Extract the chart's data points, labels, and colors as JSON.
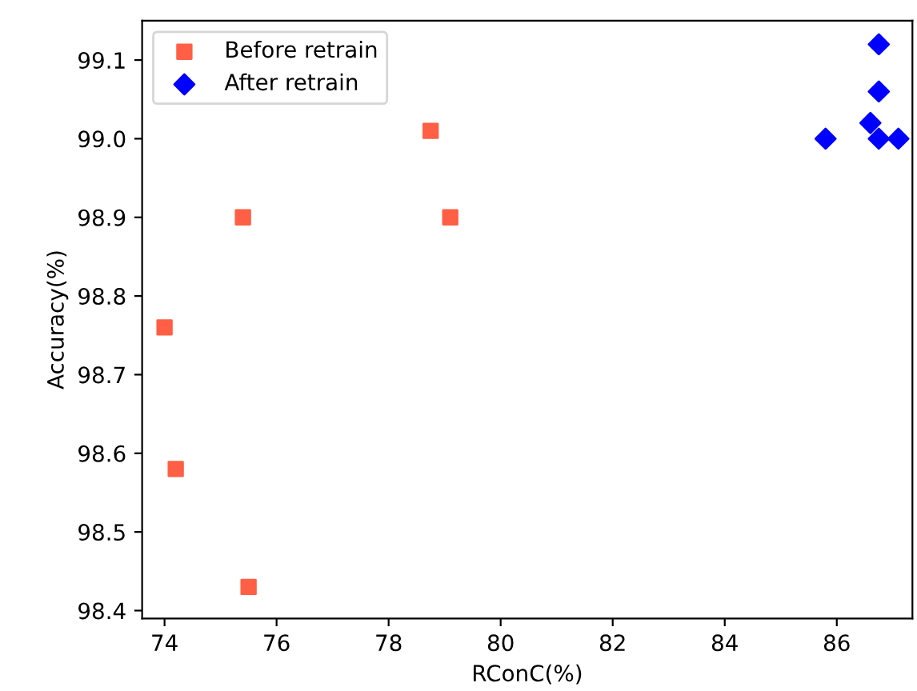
{
  "chart_data": {
    "type": "scatter",
    "xlabel": "RConC(%)",
    "ylabel": "Accuracy(%)",
    "xlim": [
      73.6,
      87.35
    ],
    "ylim": [
      98.39,
      99.15
    ],
    "xticks": [
      74,
      76,
      78,
      80,
      82,
      84,
      86
    ],
    "yticks": [
      {
        "value": 98.4,
        "label": "98.4"
      },
      {
        "value": 98.5,
        "label": "98.5"
      },
      {
        "value": 98.6,
        "label": "98.6"
      },
      {
        "value": 98.7,
        "label": "98.7"
      },
      {
        "value": 98.8,
        "label": "98.8"
      },
      {
        "value": 98.9,
        "label": "98.9"
      },
      {
        "value": 99.0,
        "label": "99.0"
      },
      {
        "value": 99.1,
        "label": "99.1"
      }
    ],
    "legend": "top left",
    "grid": false,
    "series": [
      {
        "name": "Before retrain",
        "color": "#ff5f45",
        "marker": "square",
        "x": [
          74.0,
          74.2,
          75.4,
          75.5,
          78.75,
          79.1
        ],
        "values": [
          98.76,
          98.58,
          98.9,
          98.43,
          99.01,
          98.9
        ]
      },
      {
        "name": "After retrain",
        "color": "#0000ff",
        "marker": "diamond",
        "x": [
          85.8,
          86.6,
          86.75,
          86.75,
          86.75,
          87.1
        ],
        "values": [
          99.0,
          99.02,
          99.12,
          99.06,
          99.0,
          99.0
        ]
      }
    ]
  }
}
